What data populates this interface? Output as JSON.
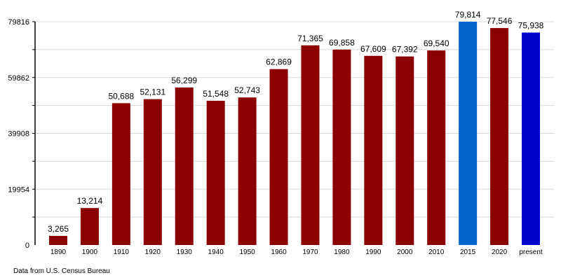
{
  "chart_data": {
    "type": "bar",
    "title": "",
    "xlabel": "",
    "ylabel": "",
    "categories": [
      "1890",
      "1900",
      "1910",
      "1920",
      "1930",
      "1940",
      "1950",
      "1960",
      "1970",
      "1980",
      "1990",
      "2000",
      "2010",
      "2015",
      "2020",
      "present"
    ],
    "values": [
      3265,
      13214,
      50688,
      52131,
      56299,
      51548,
      52743,
      62869,
      71365,
      69858,
      67609,
      67392,
      69540,
      79814,
      77546,
      75938
    ],
    "data_labels": [
      "3,265",
      "13,214",
      "50,688",
      "52,131",
      "56,299",
      "51,548",
      "52,743",
      "62,869",
      "71,365",
      "69,858",
      "67,609",
      "67,392",
      "69,540",
      "79,814",
      "77,546",
      "75,938"
    ],
    "bar_colors": [
      "#8b0000",
      "#8b0000",
      "#8b0000",
      "#8b0000",
      "#8b0000",
      "#8b0000",
      "#8b0000",
      "#8b0000",
      "#8b0000",
      "#8b0000",
      "#8b0000",
      "#8b0000",
      "#8b0000",
      "#0066cc",
      "#8b0000",
      "#0000cc"
    ],
    "ylim": [
      0,
      79816
    ],
    "yticks": [
      "0",
      "19954",
      "39908",
      "59862",
      "79816"
    ],
    "grid": true,
    "legend": "none"
  },
  "source_note": "Data from U.S. Census Bureau"
}
